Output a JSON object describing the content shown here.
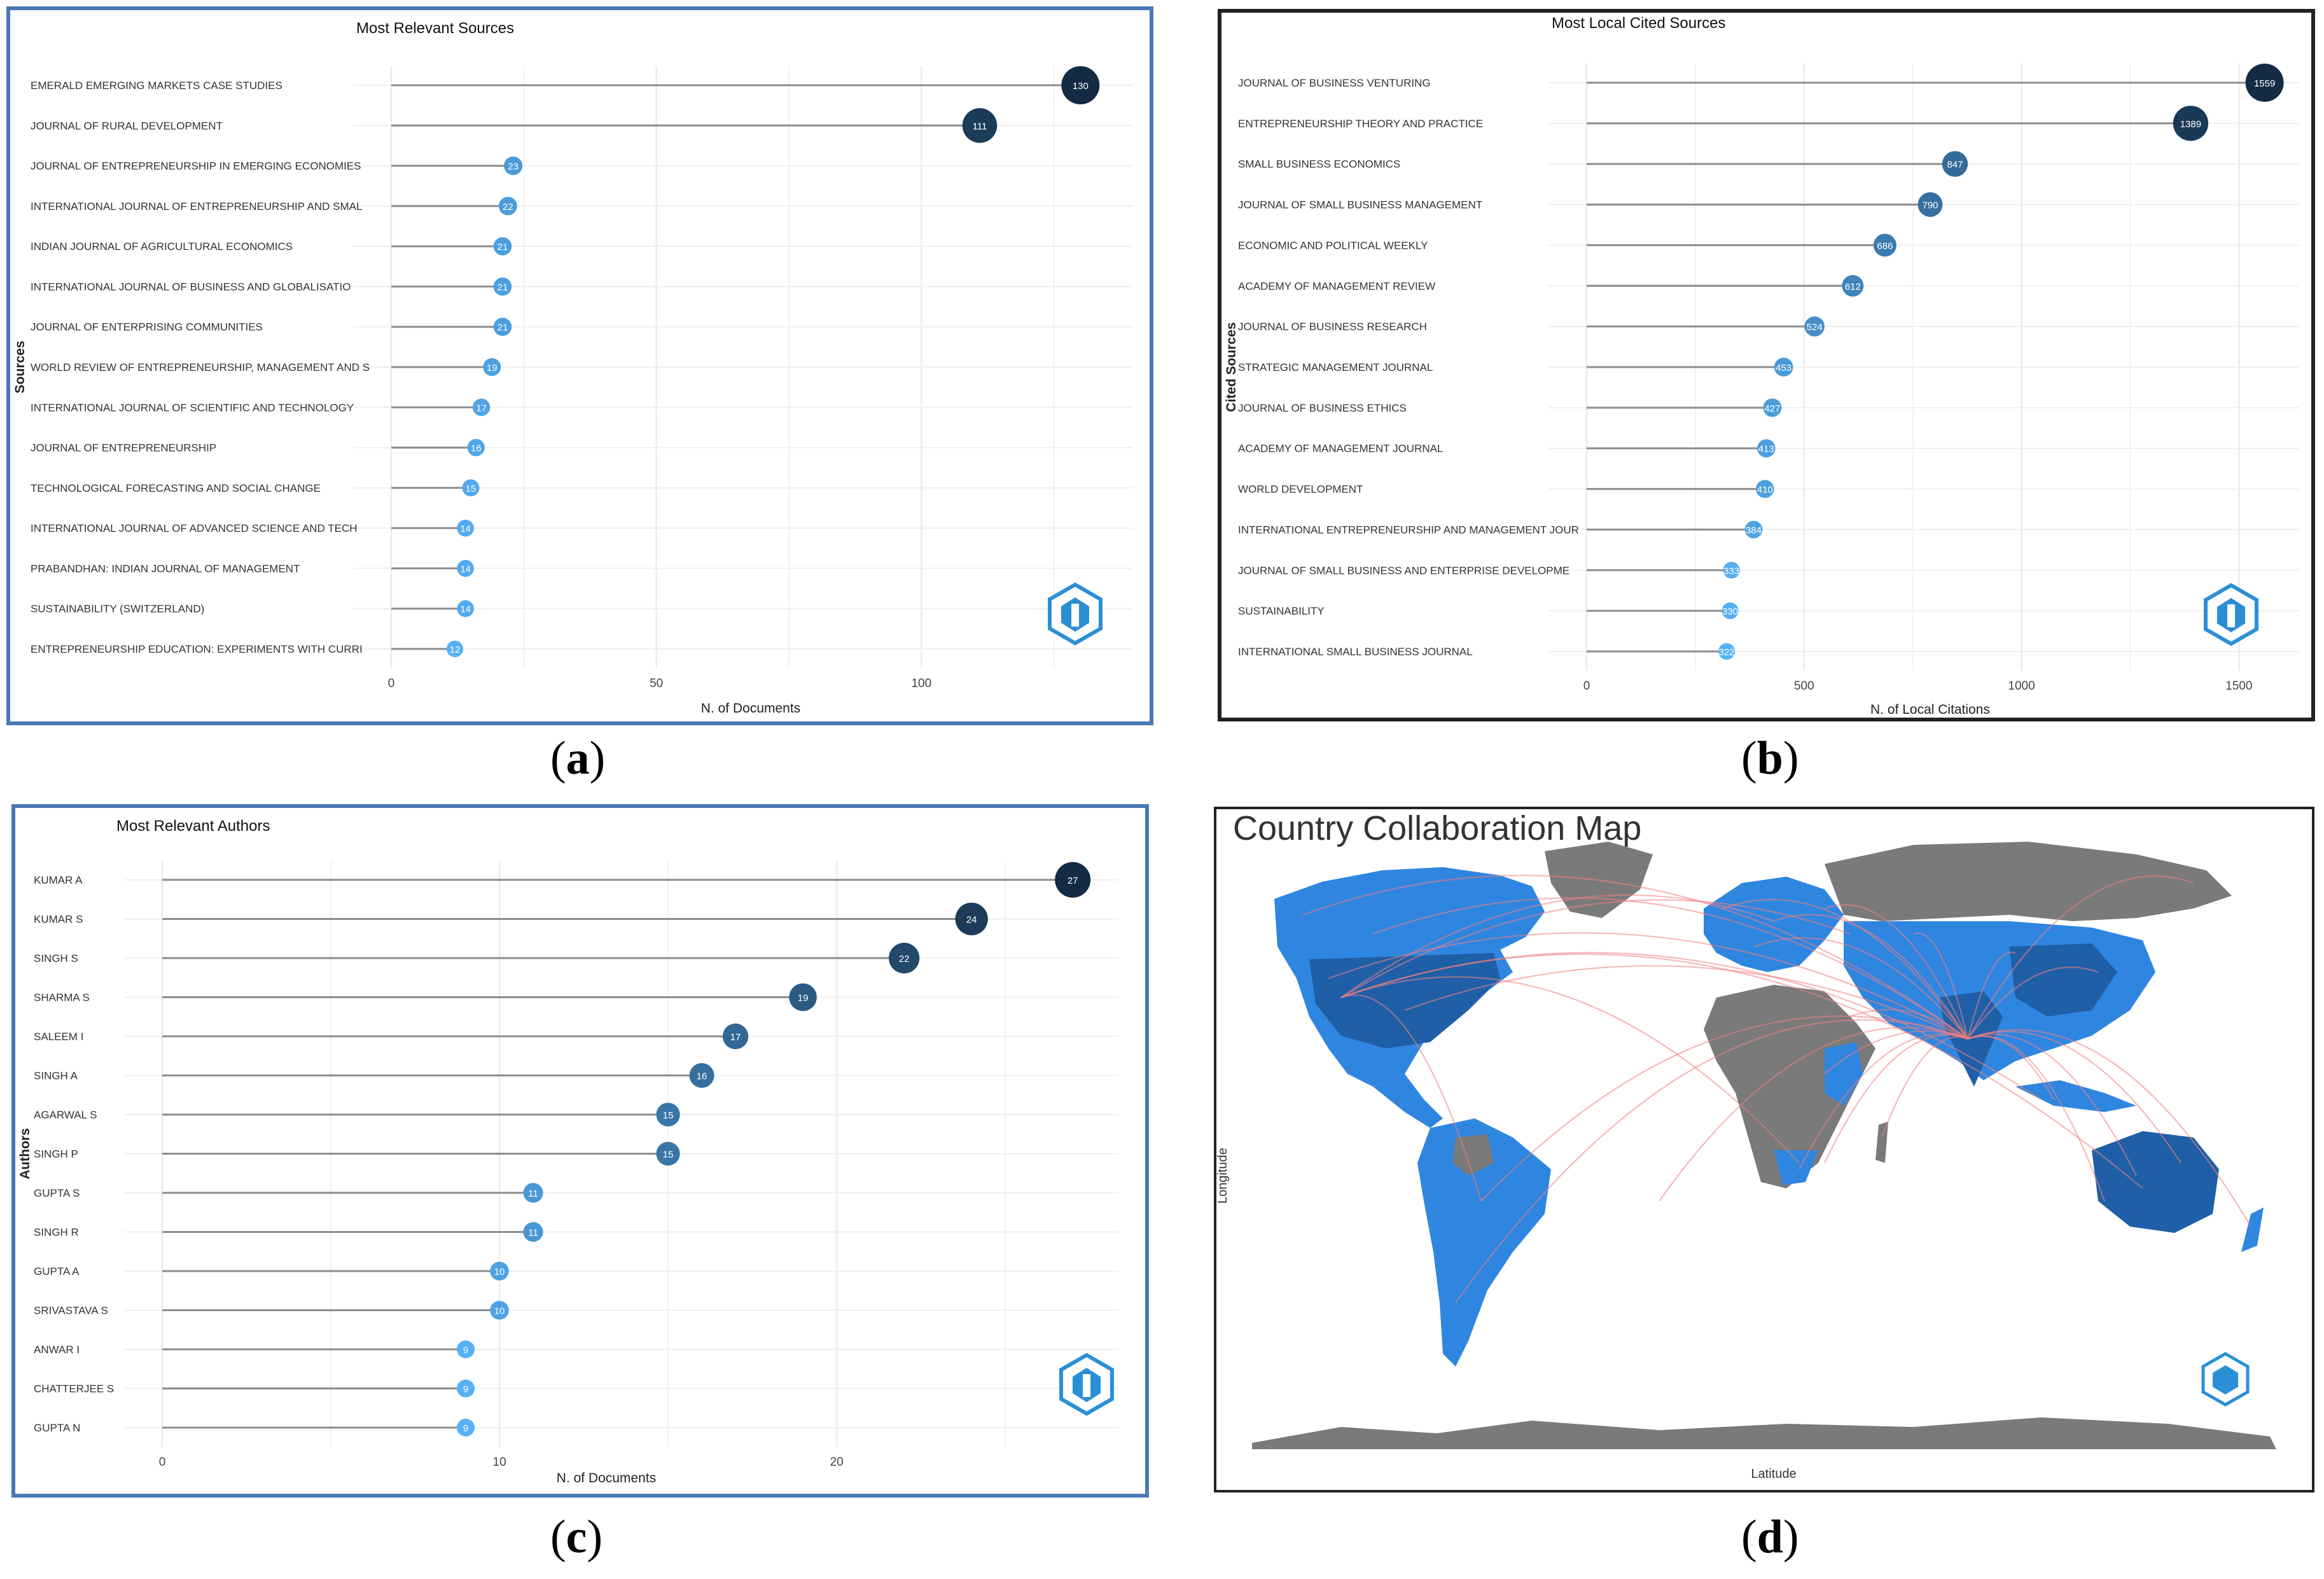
{
  "colors": {
    "panel_a_border": "#4a78b5",
    "panel_b_border": "#222222",
    "panel_c_border": "#4a78b5",
    "panel_d_border": "#222222",
    "dark_dot": "#132b43",
    "light_dot": "#56b1f7",
    "grid": "#ebebeb",
    "stem": "#8c8c8c",
    "land_blue_dark": "#1f5fa8",
    "land_blue": "#2f86e0",
    "land_grey": "#7a7a7a",
    "link": "#f08080",
    "logo": "#2b8fd6"
  },
  "captions": {
    "a": "a",
    "b": "b",
    "c": "c",
    "d": "d"
  },
  "logo_icon": "bibliometrix-logo-icon",
  "chart_data": [
    {
      "id": "a",
      "type": "lollipop",
      "title": "Most Relevant Sources",
      "xlabel": "N. of Documents",
      "ylabel": "Sources",
      "xlim": [
        0,
        130
      ],
      "xticks": [
        0,
        50,
        100
      ],
      "categories": [
        "EMERALD EMERGING MARKETS CASE STUDIES",
        "JOURNAL OF RURAL DEVELOPMENT",
        "JOURNAL OF ENTREPRENEURSHIP IN EMERGING ECONOMIES",
        "INTERNATIONAL JOURNAL OF ENTREPRENEURSHIP AND SMAL",
        "INDIAN JOURNAL OF AGRICULTURAL ECONOMICS",
        "INTERNATIONAL JOURNAL OF BUSINESS AND GLOBALISATIO",
        "JOURNAL OF ENTERPRISING COMMUNITIES",
        "WORLD REVIEW OF ENTREPRENEURSHIP, MANAGEMENT AND S",
        "INTERNATIONAL JOURNAL OF SCIENTIFIC AND TECHNOLOGY",
        "JOURNAL OF ENTREPRENEURSHIP",
        "TECHNOLOGICAL FORECASTING AND SOCIAL CHANGE",
        "INTERNATIONAL JOURNAL OF ADVANCED SCIENCE AND TECH",
        "PRABANDHAN: INDIAN JOURNAL OF MANAGEMENT",
        "SUSTAINABILITY (SWITZERLAND)",
        "ENTREPRENEURSHIP EDUCATION: EXPERIMENTS WITH CURRI"
      ],
      "values": [
        130,
        111,
        23,
        22,
        21,
        21,
        21,
        19,
        17,
        16,
        15,
        14,
        14,
        14,
        12
      ]
    },
    {
      "id": "b",
      "type": "lollipop",
      "title": "Most Local Cited Sources",
      "xlabel": "N. of Local Citations",
      "ylabel": "Cited Sources",
      "xlim": [
        0,
        1559
      ],
      "xticks": [
        0,
        500,
        1000,
        1500
      ],
      "categories": [
        "JOURNAL OF BUSINESS VENTURING",
        "ENTREPRENEURSHIP THEORY AND PRACTICE",
        "SMALL BUSINESS ECONOMICS",
        "JOURNAL OF SMALL BUSINESS MANAGEMENT",
        "ECONOMIC AND POLITICAL WEEKLY",
        "ACADEMY OF MANAGEMENT REVIEW",
        "JOURNAL OF BUSINESS RESEARCH",
        "STRATEGIC MANAGEMENT JOURNAL",
        "JOURNAL OF BUSINESS ETHICS",
        "ACADEMY OF MANAGEMENT JOURNAL",
        "WORLD DEVELOPMENT",
        "INTERNATIONAL ENTREPRENEURSHIP AND MANAGEMENT JOUR",
        "JOURNAL OF SMALL BUSINESS AND ENTERPRISE DEVELOPME",
        "SUSTAINABILITY",
        "INTERNATIONAL SMALL BUSINESS JOURNAL"
      ],
      "values": [
        1559,
        1389,
        847,
        790,
        686,
        612,
        524,
        453,
        427,
        413,
        410,
        384,
        333,
        330,
        322
      ],
      "labels": [
        "1559",
        "1389",
        "847",
        "790",
        "686",
        "612",
        "524",
        "453",
        "427",
        "413",
        "410",
        "384",
        "333",
        "330",
        "322"
      ]
    },
    {
      "id": "c",
      "type": "lollipop",
      "title": "Most Relevant Authors",
      "xlabel": "N. of Documents",
      "ylabel": "Authors",
      "xlim": [
        0,
        27
      ],
      "xticks": [
        0,
        10,
        20
      ],
      "categories": [
        "KUMAR A",
        "KUMAR S",
        "SINGH S",
        "SHARMA S",
        "SALEEM I",
        "SINGH A",
        "AGARWAL S",
        "SINGH P",
        "GUPTA S",
        "SINGH R",
        "GUPTA A",
        "SRIVASTAVA S",
        "ANWAR I",
        "CHATTERJEE S",
        "GUPTA N"
      ],
      "values": [
        27,
        24,
        22,
        19,
        17,
        16,
        15,
        15,
        11,
        11,
        10,
        10,
        9,
        9,
        9
      ]
    },
    {
      "id": "d",
      "type": "map",
      "title": "Country Collaboration Map",
      "xlabel": "Latitude",
      "ylabel": "Longitude",
      "description": "World map: countries shaded in blue by collaboration, grey with none; red arcs link collaborating countries, radiating from India."
    }
  ]
}
